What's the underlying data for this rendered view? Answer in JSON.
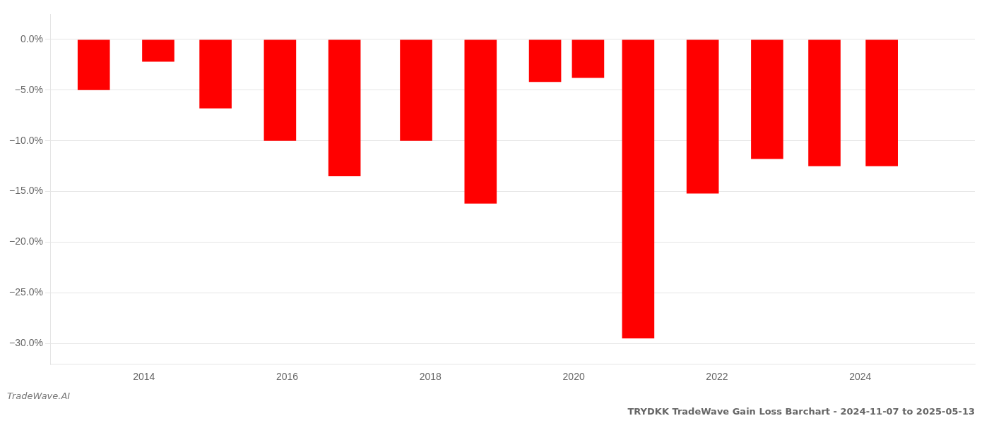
{
  "chart_data": {
    "type": "bar",
    "title": "TRYDKK TradeWave Gain Loss Barchart - 2024-11-07 to 2025-05-13",
    "annotations": [
      "TradeWave.AI"
    ],
    "x": [
      2013.3,
      2014.2,
      2015.0,
      2015.9,
      2016.8,
      2017.8,
      2018.7,
      2019.6,
      2020.2,
      2020.9,
      2021.8,
      2022.7,
      2023.5,
      2024.3
    ],
    "values": [
      -5.0,
      -2.2,
      -6.8,
      -10.0,
      -13.5,
      -10.0,
      -16.2,
      -4.2,
      -3.8,
      -29.5,
      -15.2,
      -11.8,
      -12.5,
      -12.5
    ],
    "color": "#ff0000",
    "xlim": [
      2012.7,
      2025.6
    ],
    "xticks": [
      2014,
      2016,
      2018,
      2020,
      2022,
      2024
    ],
    "ylim": [
      -32,
      2.5
    ],
    "yticks": [
      {
        "value": 0.0,
        "label": "0.0%"
      },
      {
        "value": -5.0,
        "label": "−5.0%"
      },
      {
        "value": -10.0,
        "label": "−10.0%"
      },
      {
        "value": -15.0,
        "label": "−15.0%"
      },
      {
        "value": -20.0,
        "label": "−20.0%"
      },
      {
        "value": -25.0,
        "label": "−25.0%"
      },
      {
        "value": -30.0,
        "label": "−30.0%"
      }
    ],
    "grid": true
  }
}
